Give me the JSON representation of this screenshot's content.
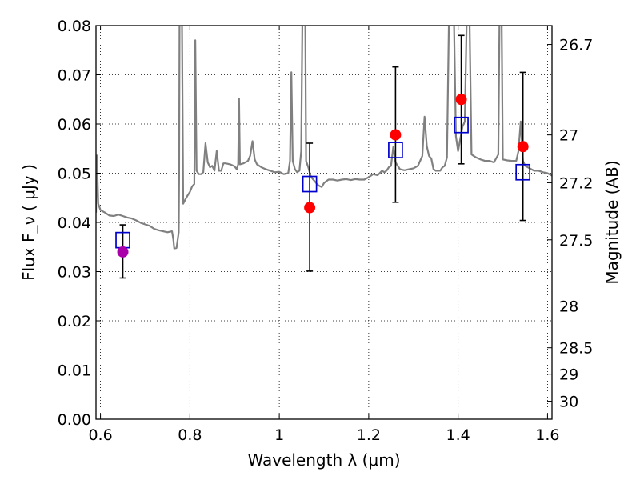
{
  "chart_data": {
    "type": "scatter",
    "xlabel": "Wavelength  λ (μm)",
    "ylabel": "Flux  F_ν  ( μJy )",
    "ylabel_right": "Magnitude (AB)",
    "xlim": [
      0.59,
      1.61
    ],
    "ylim": [
      0,
      0.08
    ],
    "grid": true,
    "x_ticks": [
      0.6,
      0.8,
      1.0,
      1.2,
      1.4,
      1.6
    ],
    "x_tick_labels": [
      "0.6",
      "0.8",
      "1",
      "1.2",
      "1.4",
      "1.6"
    ],
    "y_ticks": [
      0.0,
      0.01,
      0.02,
      0.03,
      0.04,
      0.05,
      0.06,
      0.07,
      0.08
    ],
    "y_tick_labels": [
      "0.00",
      "0.01",
      "0.02",
      "0.03",
      "0.04",
      "0.05",
      "0.06",
      "0.07",
      "0.08"
    ],
    "right_ticks": [
      {
        "label": "26.7",
        "flux": 0.07617
      },
      {
        "label": "27",
        "flux": 0.05778
      },
      {
        "label": "27.2",
        "flux": 0.04806
      },
      {
        "label": "27.5",
        "flux": 0.03646
      },
      {
        "label": "28",
        "flux": 0.02301
      },
      {
        "label": "28.5",
        "flux": 0.01452
      },
      {
        "label": "29",
        "flux": 0.00916
      },
      {
        "label": "30",
        "flux": 0.00365
      }
    ],
    "colors": {
      "spectrum": "#808080",
      "observed": "#ff0000",
      "observed_first": "#aa00aa",
      "model": "#0000cc",
      "errorbar": "#000000",
      "grid": "#000000"
    },
    "series": [
      {
        "role": "template spectrum",
        "points": [
          [
            0.59,
            0.042
          ],
          [
            0.592,
            0.0536
          ],
          [
            0.595,
            0.0438
          ],
          [
            0.6,
            0.0425
          ],
          [
            0.61,
            0.042
          ],
          [
            0.62,
            0.0414
          ],
          [
            0.63,
            0.0413
          ],
          [
            0.64,
            0.0416
          ],
          [
            0.65,
            0.0413
          ],
          [
            0.66,
            0.041
          ],
          [
            0.67,
            0.0408
          ],
          [
            0.68,
            0.0404
          ],
          [
            0.69,
            0.0399
          ],
          [
            0.7,
            0.0396
          ],
          [
            0.71,
            0.0393
          ],
          [
            0.72,
            0.0387
          ],
          [
            0.73,
            0.0384
          ],
          [
            0.74,
            0.0382
          ],
          [
            0.75,
            0.038
          ],
          [
            0.76,
            0.0382
          ],
          [
            0.763,
            0.0365
          ],
          [
            0.765,
            0.0347
          ],
          [
            0.77,
            0.0348
          ],
          [
            0.772,
            0.036
          ],
          [
            0.775,
            0.038
          ],
          [
            0.776,
            0.0495
          ],
          [
            0.777,
            0.085
          ],
          [
            0.782,
            0.085
          ],
          [
            0.785,
            0.0438
          ],
          [
            0.79,
            0.0447
          ],
          [
            0.795,
            0.0455
          ],
          [
            0.8,
            0.0462
          ],
          [
            0.805,
            0.0473
          ],
          [
            0.81,
            0.0478
          ],
          [
            0.812,
            0.077
          ],
          [
            0.815,
            0.0505
          ],
          [
            0.82,
            0.0498
          ],
          [
            0.825,
            0.0498
          ],
          [
            0.83,
            0.0502
          ],
          [
            0.835,
            0.0561
          ],
          [
            0.84,
            0.0522
          ],
          [
            0.845,
            0.0512
          ],
          [
            0.85,
            0.0515
          ],
          [
            0.855,
            0.0505
          ],
          [
            0.86,
            0.0545
          ],
          [
            0.865,
            0.0505
          ],
          [
            0.87,
            0.0505
          ],
          [
            0.875,
            0.052
          ],
          [
            0.88,
            0.052
          ],
          [
            0.89,
            0.0518
          ],
          [
            0.9,
            0.0514
          ],
          [
            0.905,
            0.0508
          ],
          [
            0.908,
            0.0518
          ],
          [
            0.91,
            0.0652
          ],
          [
            0.912,
            0.0518
          ],
          [
            0.92,
            0.052
          ],
          [
            0.93,
            0.0525
          ],
          [
            0.935,
            0.0536
          ],
          [
            0.94,
            0.0565
          ],
          [
            0.945,
            0.0528
          ],
          [
            0.95,
            0.0518
          ],
          [
            0.96,
            0.0512
          ],
          [
            0.97,
            0.0508
          ],
          [
            0.98,
            0.0505
          ],
          [
            0.99,
            0.0502
          ],
          [
            1.0,
            0.0503
          ],
          [
            1.01,
            0.0498
          ],
          [
            1.02,
            0.05
          ],
          [
            1.024,
            0.0525
          ],
          [
            1.027,
            0.0705
          ],
          [
            1.03,
            0.0525
          ],
          [
            1.035,
            0.0508
          ],
          [
            1.04,
            0.0502
          ],
          [
            1.045,
            0.0505
          ],
          [
            1.049,
            0.0545
          ],
          [
            1.052,
            0.085
          ],
          [
            1.058,
            0.085
          ],
          [
            1.06,
            0.0525
          ],
          [
            1.065,
            0.0512
          ],
          [
            1.07,
            0.0495
          ],
          [
            1.075,
            0.0488
          ],
          [
            1.08,
            0.0483
          ],
          [
            1.085,
            0.0477
          ],
          [
            1.09,
            0.0474
          ],
          [
            1.095,
            0.0472
          ],
          [
            1.1,
            0.048
          ],
          [
            1.11,
            0.0487
          ],
          [
            1.12,
            0.0487
          ],
          [
            1.13,
            0.0485
          ],
          [
            1.14,
            0.0487
          ],
          [
            1.15,
            0.0488
          ],
          [
            1.16,
            0.0486
          ],
          [
            1.17,
            0.0488
          ],
          [
            1.18,
            0.0487
          ],
          [
            1.19,
            0.0487
          ],
          [
            1.2,
            0.0492
          ],
          [
            1.21,
            0.0498
          ],
          [
            1.22,
            0.0496
          ],
          [
            1.23,
            0.0505
          ],
          [
            1.235,
            0.0502
          ],
          [
            1.24,
            0.0505
          ],
          [
            1.245,
            0.0512
          ],
          [
            1.25,
            0.0515
          ],
          [
            1.255,
            0.0553
          ],
          [
            1.26,
            0.0522
          ],
          [
            1.27,
            0.0508
          ],
          [
            1.28,
            0.0506
          ],
          [
            1.29,
            0.0508
          ],
          [
            1.3,
            0.051
          ],
          [
            1.31,
            0.0515
          ],
          [
            1.32,
            0.0535
          ],
          [
            1.325,
            0.0615
          ],
          [
            1.33,
            0.0555
          ],
          [
            1.335,
            0.0535
          ],
          [
            1.34,
            0.053
          ],
          [
            1.345,
            0.0508
          ],
          [
            1.35,
            0.0505
          ],
          [
            1.36,
            0.0505
          ],
          [
            1.365,
            0.0512
          ],
          [
            1.37,
            0.0515
          ],
          [
            1.375,
            0.0532
          ],
          [
            1.38,
            0.085
          ],
          [
            1.39,
            0.085
          ],
          [
            1.395,
            0.0575
          ],
          [
            1.4,
            0.0545
          ],
          [
            1.41,
            0.0595
          ],
          [
            1.415,
            0.0605
          ],
          [
            1.42,
            0.085
          ],
          [
            1.425,
            0.085
          ],
          [
            1.43,
            0.0538
          ],
          [
            1.44,
            0.0532
          ],
          [
            1.45,
            0.0528
          ],
          [
            1.46,
            0.0525
          ],
          [
            1.47,
            0.0525
          ],
          [
            1.48,
            0.0522
          ],
          [
            1.49,
            0.0538
          ],
          [
            1.493,
            0.085
          ],
          [
            1.497,
            0.085
          ],
          [
            1.5,
            0.0528
          ],
          [
            1.51,
            0.0526
          ],
          [
            1.52,
            0.0525
          ],
          [
            1.53,
            0.0525
          ],
          [
            1.535,
            0.0545
          ],
          [
            1.54,
            0.0605
          ],
          [
            1.545,
            0.0525
          ],
          [
            1.55,
            0.0515
          ],
          [
            1.56,
            0.051
          ],
          [
            1.57,
            0.0505
          ],
          [
            1.58,
            0.0505
          ],
          [
            1.59,
            0.0502
          ],
          [
            1.6,
            0.05
          ],
          [
            1.61,
            0.0495
          ]
        ]
      },
      {
        "role": "observed photometry with error bars",
        "points": [
          {
            "x": 0.65,
            "y": 0.034,
            "yerr_low": 0.0287,
            "yerr_high": 0.0395
          },
          {
            "x": 1.068,
            "y": 0.043,
            "yerr_low": 0.0301,
            "yerr_high": 0.0561
          },
          {
            "x": 1.26,
            "y": 0.0578,
            "yerr_low": 0.0441,
            "yerr_high": 0.0716
          },
          {
            "x": 1.407,
            "y": 0.065,
            "yerr_low": 0.0519,
            "yerr_high": 0.078
          },
          {
            "x": 1.545,
            "y": 0.0554,
            "yerr_low": 0.0404,
            "yerr_high": 0.0705
          }
        ]
      },
      {
        "role": "model band fluxes",
        "points": [
          {
            "x": 0.65,
            "y": 0.0364
          },
          {
            "x": 1.068,
            "y": 0.0478
          },
          {
            "x": 1.26,
            "y": 0.0547
          },
          {
            "x": 1.407,
            "y": 0.0598
          },
          {
            "x": 1.545,
            "y": 0.0502
          }
        ]
      }
    ]
  }
}
